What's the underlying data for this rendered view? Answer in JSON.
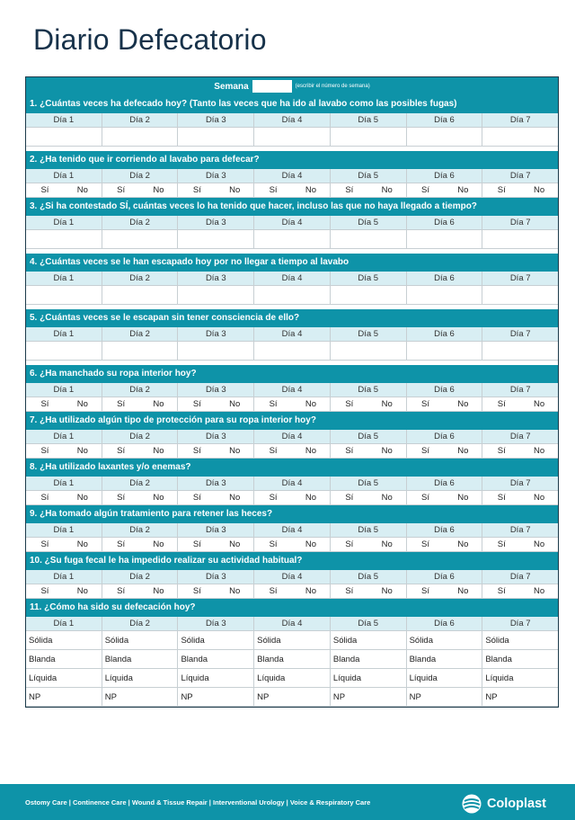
{
  "title": "Diario Defecatorio",
  "week": {
    "label": "Semana",
    "hint": "(escribir el número de semana)"
  },
  "days": [
    "Día 1",
    "Día 2",
    "Día 3",
    "Día 4",
    "Día 5",
    "Día 6",
    "Día 7"
  ],
  "yes": "Sí",
  "no": "No",
  "questions": [
    {
      "text": "1. ¿Cuántas veces ha defecado hoy? (Tanto las veces que ha ido al lavabo como las posibles fugas)",
      "kind": "blank"
    },
    {
      "text": "2. ¿Ha tenido que ir corriendo al lavabo para defecar?",
      "kind": "yesno"
    },
    {
      "text": "3. ¿Si ha contestado SÍ, cuántas veces lo ha tenido que hacer, incluso las que no haya llegado a tiempo?",
      "kind": "blank"
    },
    {
      "text": "4. ¿Cuántas veces se le han escapado hoy por no llegar a tiempo al lavabo",
      "kind": "blank"
    },
    {
      "text": "5. ¿Cuántas veces se le escapan sin tener consciencia de ello?",
      "kind": "blank"
    },
    {
      "text": "6. ¿Ha manchado su ropa interior hoy?",
      "kind": "yesno"
    },
    {
      "text": "7. ¿Ha utilizado algún tipo de protección para su ropa interior hoy?",
      "kind": "yesno"
    },
    {
      "text": "8. ¿Ha utilizado laxantes y/o enemas?",
      "kind": "yesno"
    },
    {
      "text": "9. ¿Ha tomado algún tratamiento para retener las heces?",
      "kind": "yesno"
    },
    {
      "text": "10. ¿Su fuga fecal le ha impedido realizar su actividad habitual?",
      "kind": "yesno"
    },
    {
      "text": "11. ¿Cómo ha sido su defecación hoy?",
      "kind": "consistency"
    }
  ],
  "consistency_options": [
    "Sólida",
    "Blanda",
    "Líquida",
    "NP"
  ],
  "footer": {
    "links": "Ostomy Care | Continence Care | Wound & Tissue Repair | Interventional Urology | Voice & Respiratory Care",
    "brand": "Coloplast"
  },
  "colors": {
    "accent": "#0e93a8",
    "day_row": "#d8eef3",
    "title": "#17324a"
  }
}
